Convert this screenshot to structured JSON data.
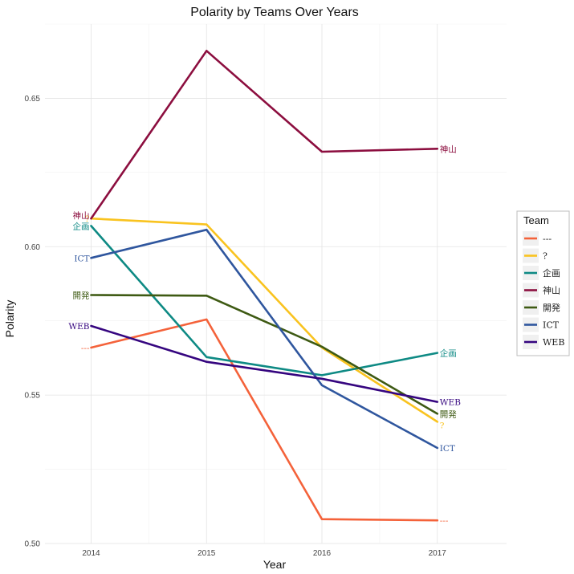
{
  "chart_data": {
    "type": "line",
    "title": "Polarity by Teams Over Years",
    "xlabel": "Year",
    "ylabel": "Polarity",
    "x": [
      2014,
      2015,
      2016,
      2017
    ],
    "xlim": [
      2013.6,
      2017.6
    ],
    "ylim": [
      0.5,
      0.675
    ],
    "yticks": [
      0.5,
      0.55,
      0.6,
      0.65
    ],
    "ytick_labels": [
      "0.50",
      "0.55",
      "0.60",
      "0.65"
    ],
    "xtick_labels": [
      "2014",
      "2015",
      "2016",
      "2017"
    ],
    "grid": true,
    "legend": {
      "title": "Team",
      "placement": "right"
    },
    "series": [
      {
        "name": "---",
        "color": "#f4623a",
        "values": [
          0.566,
          0.5755,
          0.5082,
          0.5078
        ]
      },
      {
        "name": "?",
        "color": "#f9c31f",
        "values": [
          0.6095,
          0.6075,
          0.566,
          0.541
        ]
      },
      {
        "name": "企画",
        "color": "#0e8a84",
        "values": [
          0.607,
          0.5628,
          0.5567,
          0.5642
        ]
      },
      {
        "name": "神山",
        "color": "#8c0e3f",
        "values": [
          0.6095,
          0.666,
          0.632,
          0.633
        ]
      },
      {
        "name": "開発",
        "color": "#3e5a13",
        "values": [
          0.5837,
          0.5835,
          0.5663,
          0.5437
        ]
      },
      {
        "name": "ICT",
        "color": "#2f569e",
        "values": [
          0.5962,
          0.6057,
          0.5533,
          0.5322
        ]
      },
      {
        "name": "WEB",
        "color": "#35057f",
        "values": [
          0.5733,
          0.5612,
          0.5555,
          0.5477
        ]
      }
    ]
  }
}
